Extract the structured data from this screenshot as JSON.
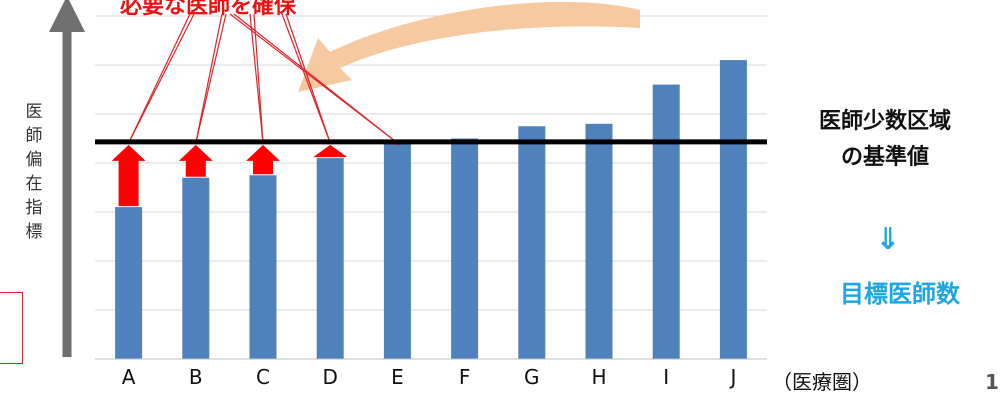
{
  "chart_data": {
    "type": "bar",
    "categories": [
      "A",
      "B",
      "C",
      "D",
      "E",
      "F",
      "G",
      "H",
      "I",
      "J"
    ],
    "values": [
      31,
      37,
      37.5,
      41,
      44,
      45,
      47.5,
      48,
      56,
      61
    ],
    "ylim": [
      0,
      70
    ],
    "grid": true,
    "bar_color": "#4f81bd",
    "threshold": 44.3,
    "threshold_color": "#000000",
    "arrow_color": "#ff0000",
    "annotation_line_color": "#e0242a",
    "curved_arrow_color": "#f6c9a0",
    "ylabel_chars": [
      "医",
      "師",
      "偏",
      "在",
      "指",
      "標"
    ],
    "x_unit": "（医療圏）"
  },
  "annotations": {
    "top_banner": "必要な医師を確保",
    "threshold_label_line1": "医師少数区域",
    "threshold_label_line2": "の基準値",
    "arrow_glyph": "⇓",
    "target_label": "目標医師数",
    "target_color": "#1ca6e6"
  },
  "page_number": "1"
}
